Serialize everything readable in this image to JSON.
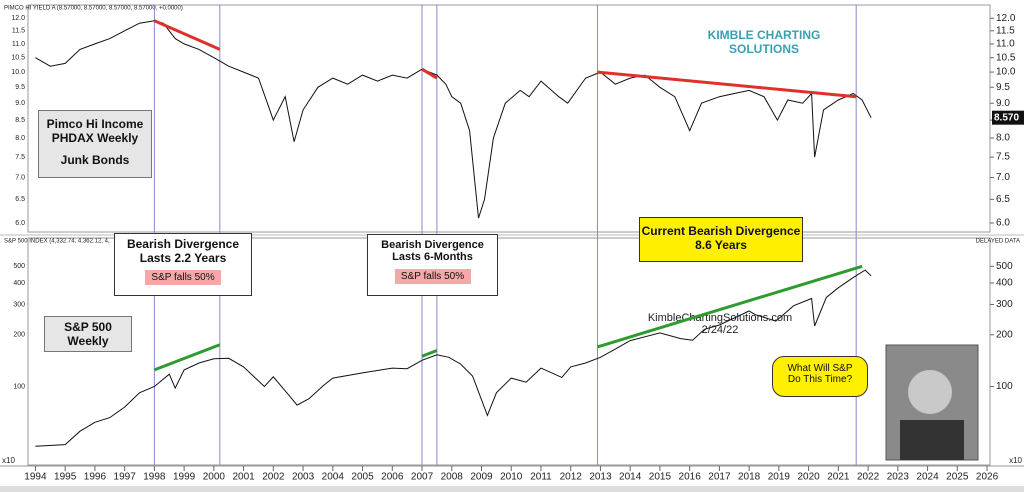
{
  "chart_data": [
    {
      "type": "line",
      "header": "PIMCO HI YIELD A (8.57000, 8.57000, 8.57000, 8.57000, +0.0000)",
      "log_scale": true,
      "color": "#111111",
      "x": [
        1994.0,
        1994.5,
        1995.0,
        1995.5,
        1996.0,
        1996.5,
        1997.0,
        1997.5,
        1998.0,
        1998.3,
        1998.7,
        1999.0,
        1999.5,
        2000.0,
        2000.5,
        2001.0,
        2001.5,
        2001.8,
        2002.0,
        2002.4,
        2002.7,
        2003.0,
        2003.5,
        2004.0,
        2004.5,
        2005.0,
        2005.5,
        2006.0,
        2006.5,
        2007.0,
        2007.5,
        2007.8,
        2008.0,
        2008.3,
        2008.6,
        2008.9,
        2009.1,
        2009.4,
        2009.8,
        2010.3,
        2010.6,
        2011.0,
        2011.6,
        2011.9,
        2012.5,
        2013.0,
        2013.5,
        2014.0,
        2014.5,
        2015.0,
        2015.5,
        2016.0,
        2016.4,
        2017.0,
        2017.5,
        2018.0,
        2018.5,
        2018.95,
        2019.3,
        2019.8,
        2020.1,
        2020.2,
        2020.5,
        2021.0,
        2021.5,
        2021.8,
        2022.1
      ],
      "values": [
        10.5,
        10.2,
        10.3,
        10.8,
        11.0,
        11.2,
        11.5,
        11.8,
        11.9,
        11.8,
        11.2,
        11.0,
        10.8,
        10.5,
        10.2,
        10.0,
        9.8,
        9.0,
        8.5,
        9.2,
        7.9,
        8.8,
        9.5,
        9.8,
        9.6,
        9.9,
        9.7,
        9.9,
        9.8,
        10.1,
        9.9,
        9.6,
        9.2,
        9.0,
        8.2,
        6.1,
        6.5,
        8.0,
        9.0,
        9.4,
        9.2,
        9.7,
        9.2,
        9.0,
        9.8,
        10.0,
        9.6,
        9.8,
        9.9,
        9.5,
        9.2,
        8.2,
        9.0,
        9.2,
        9.3,
        9.4,
        9.2,
        8.5,
        9.1,
        9.0,
        9.3,
        7.5,
        8.8,
        9.1,
        9.3,
        9.1,
        8.57
      ],
      "last_value": {
        "value": 8.57,
        "label": "8.570"
      },
      "xlim": [
        1993.75,
        2026.1
      ],
      "ylim": [
        5.82,
        12.55
      ],
      "yticks": [
        {
          "value": 6,
          "label": "6.0"
        },
        6.5,
        {
          "value": 7,
          "label": "7.0"
        },
        7.5,
        {
          "value": 8,
          "label": "8.0"
        },
        8.5,
        {
          "value": 9,
          "label": "9.0"
        },
        9.5,
        {
          "value": 10,
          "label": "10.0"
        },
        10.5,
        {
          "value": 11,
          "label": "11.0"
        },
        11.5,
        {
          "value": 12,
          "label": "12.0"
        }
      ],
      "trendlines": [
        {
          "color": "#e0302a",
          "x": [
            1998.0,
            2000.2
          ],
          "values": [
            11.9,
            10.8
          ]
        },
        {
          "color": "#e0302a",
          "x": [
            2007.0,
            2007.5
          ],
          "values": [
            10.1,
            9.8
          ]
        },
        {
          "color": "#e0302a",
          "x": [
            2012.9,
            2021.6
          ],
          "values": [
            10.0,
            9.2
          ]
        }
      ],
      "vlines": [
        1998.0,
        2000.2,
        2007.0,
        2007.5,
        2012.9,
        2021.6
      ],
      "text_boxes": [
        {
          "lines": [
            "Pimco Hi Income",
            "PHDAX Weekly",
            "Junk Bonds"
          ]
        },
        {
          "lines": [
            "KIMBLE CHARTING",
            "SOLUTIONS"
          ]
        }
      ]
    },
    {
      "type": "line",
      "header": "S&P 500 INDEX (4,332.74, 4,362.12, 4,",
      "status": "DELAYED DATA",
      "scale_note": "x10",
      "log_scale": true,
      "color": "#111111",
      "x": [
        1994.0,
        1995.0,
        1995.5,
        1996.0,
        1996.5,
        1997.0,
        1997.5,
        1998.0,
        1998.5,
        1998.7,
        1999.0,
        1999.5,
        2000.0,
        2000.5,
        2001.0,
        2001.7,
        2002.0,
        2002.5,
        2002.8,
        2003.2,
        2003.7,
        2004.0,
        2005.0,
        2006.0,
        2006.5,
        2007.0,
        2007.5,
        2007.9,
        2008.3,
        2008.7,
        2009.2,
        2009.5,
        2010.0,
        2010.5,
        2011.0,
        2011.7,
        2012.0,
        2012.5,
        2013.0,
        2013.5,
        2014.0,
        2015.0,
        2015.7,
        2016.1,
        2016.5,
        2017.0,
        2018.0,
        2018.2,
        2018.9,
        2019.5,
        2020.1,
        2020.2,
        2020.6,
        2021.0,
        2021.5,
        2021.9,
        2022.1
      ],
      "values": [
        45,
        46,
        55,
        62,
        66,
        76,
        92,
        100,
        118,
        98,
        125,
        137,
        145,
        146,
        130,
        100,
        114,
        90,
        78,
        85,
        102,
        112,
        120,
        128,
        127,
        142,
        153,
        148,
        135,
        115,
        68,
        92,
        112,
        106,
        128,
        113,
        130,
        137,
        148,
        165,
        185,
        205,
        190,
        186,
        215,
        228,
        275,
        262,
        240,
        295,
        325,
        225,
        330,
        375,
        430,
        475,
        440
      ],
      "xlim": [
        1993.75,
        2026.1
      ],
      "ylim": [
        35,
        730
      ],
      "xticks": [
        1994,
        1995,
        1996,
        1997,
        1998,
        1999,
        2000,
        2001,
        2002,
        2003,
        2004,
        2005,
        2006,
        2007,
        2008,
        2009,
        2010,
        2011,
        2012,
        2013,
        2014,
        2015,
        2016,
        2017,
        2018,
        2019,
        2020,
        2021,
        2022,
        2023,
        2024,
        2025,
        2026
      ],
      "yticks": [
        100,
        200,
        300,
        400,
        500
      ],
      "trendlines": [
        {
          "color": "#2e9b2e",
          "x": [
            1998.0,
            2000.2
          ],
          "values": [
            125,
            175
          ]
        },
        {
          "color": "#2e9b2e",
          "x": [
            2007.0,
            2007.5
          ],
          "values": [
            150,
            162
          ]
        },
        {
          "color": "#2e9b2e",
          "x": [
            2012.9,
            2021.8
          ],
          "values": [
            170,
            500
          ]
        }
      ],
      "text_boxes": [
        {
          "lines": [
            "Bearish Divergence",
            "Lasts 2.2 Years"
          ],
          "badge": "S&P falls 50%"
        },
        {
          "lines": [
            "Bearish Divergence",
            "Lasts 6-Months"
          ],
          "badge": "S&P falls 50%"
        },
        {
          "lines": [
            "Current Bearish Divergence",
            "8.6 Years"
          ]
        },
        {
          "lines": [
            "S&P 500",
            "Weekly"
          ]
        },
        {
          "lines": [
            "KimbleChartingSolutions.com",
            "2/24/22"
          ]
        },
        {
          "lines": [
            "What Will S&P",
            "Do This Time?"
          ]
        }
      ]
    }
  ]
}
